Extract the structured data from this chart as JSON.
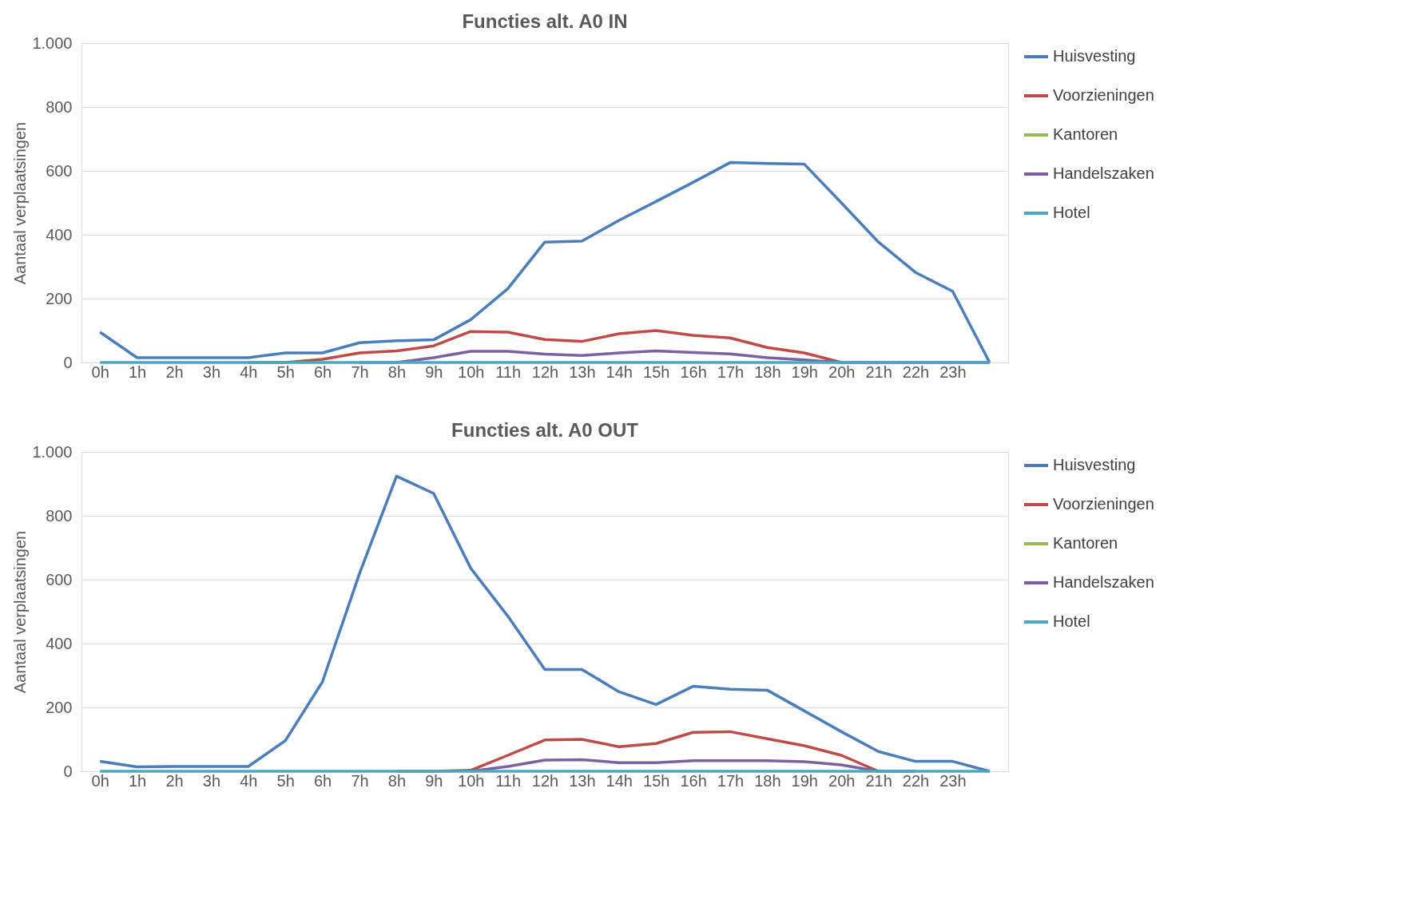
{
  "chart_data": [
    {
      "type": "line",
      "title": "Functies alt. A0 IN",
      "ylabel": "Aantaal verplaatsingen",
      "categories": [
        "0h",
        "1h",
        "2h",
        "3h",
        "4h",
        "5h",
        "6h",
        "7h",
        "8h",
        "9h",
        "10h",
        "11h",
        "12h",
        "13h",
        "14h",
        "15h",
        "16h",
        "17h",
        "18h",
        "19h",
        "20h",
        "21h",
        "22h",
        "23h",
        null
      ],
      "ylim": [
        0,
        1000
      ],
      "yticks": [
        0,
        200,
        400,
        600,
        800,
        {
          "value": 1000,
          "label": "1.000"
        }
      ],
      "grid": "y",
      "legend": "right",
      "marker": "none",
      "line_style": "solid",
      "series": [
        {
          "name": "Huisvesting",
          "color": "#4a7ebb",
          "values": [
            95,
            15,
            15,
            15,
            15,
            30,
            30,
            62,
            68,
            71,
            134,
            231,
            377,
            380,
            445,
            504,
            564,
            626,
            623,
            621,
            500,
            377,
            282,
            223,
            0
          ]
        },
        {
          "name": "Voorzieningen",
          "color": "#be4b48",
          "values": [
            null,
            null,
            null,
            null,
            0,
            0,
            10,
            30,
            36,
            52,
            97,
            95,
            72,
            66,
            90,
            100,
            85,
            77,
            47,
            30,
            0,
            0,
            null,
            null,
            null
          ]
        },
        {
          "name": "Kantoren",
          "color": "#98b954",
          "values": [
            null,
            null,
            null,
            null,
            null,
            null,
            null,
            null,
            null,
            null,
            null,
            null,
            null,
            null,
            null,
            null,
            null,
            null,
            null,
            null,
            null,
            null,
            null,
            null,
            null
          ]
        },
        {
          "name": "Handelszaken",
          "color": "#7d60a0",
          "values": [
            null,
            null,
            null,
            null,
            null,
            null,
            null,
            0,
            0,
            15,
            35,
            35,
            26,
            22,
            30,
            36,
            31,
            27,
            15,
            8,
            0,
            0,
            0,
            0,
            0
          ]
        },
        {
          "name": "Hotel",
          "color": "#46aac5",
          "values": [
            0,
            0,
            0,
            0,
            0,
            0,
            0,
            0,
            0,
            0,
            0,
            0,
            0,
            0,
            0,
            0,
            0,
            0,
            0,
            0,
            0,
            0,
            0,
            0,
            0
          ]
        }
      ]
    },
    {
      "type": "line",
      "title": "Functies alt. A0 OUT",
      "ylabel": "Aantaal verplaatsingen",
      "categories": [
        "0h",
        "1h",
        "2h",
        "3h",
        "4h",
        "5h",
        "6h",
        "7h",
        "8h",
        "9h",
        "10h",
        "11h",
        "12h",
        "13h",
        "14h",
        "15h",
        "16h",
        "17h",
        "18h",
        "19h",
        "20h",
        "21h",
        "22h",
        "23h",
        null
      ],
      "ylim": [
        0,
        1000
      ],
      "yticks": [
        0,
        200,
        400,
        600,
        800,
        {
          "value": 1000,
          "label": "1.000"
        }
      ],
      "grid": "y",
      "legend": "right",
      "marker": "none",
      "line_style": "solid",
      "series": [
        {
          "name": "Huisvesting",
          "color": "#4a7ebb",
          "values": [
            31,
            14,
            15,
            15,
            15,
            96,
            280,
            619,
            924,
            870,
            636,
            486,
            319,
            319,
            249,
            209,
            266,
            257,
            254,
            189,
            124,
            62,
            31,
            31,
            0
          ]
        },
        {
          "name": "Voorzieningen",
          "color": "#be4b48",
          "values": [
            null,
            null,
            null,
            null,
            null,
            null,
            null,
            null,
            0,
            0,
            3,
            50,
            98,
            100,
            77,
            87,
            122,
            124,
            102,
            80,
            50,
            0,
            0,
            null,
            null
          ]
        },
        {
          "name": "Kantoren",
          "color": "#98b954",
          "values": [
            null,
            null,
            null,
            null,
            null,
            null,
            null,
            null,
            null,
            null,
            null,
            null,
            null,
            null,
            null,
            null,
            null,
            null,
            null,
            null,
            null,
            null,
            null,
            null,
            null
          ]
        },
        {
          "name": "Handelszaken",
          "color": "#7d60a0",
          "values": [
            null,
            null,
            null,
            null,
            null,
            null,
            null,
            null,
            null,
            null,
            0,
            15,
            35,
            36,
            27,
            27,
            33,
            33,
            33,
            30,
            20,
            0,
            0,
            null,
            null
          ]
        },
        {
          "name": "Hotel",
          "color": "#46aac5",
          "values": [
            0,
            0,
            0,
            0,
            0,
            0,
            0,
            0,
            0,
            0,
            0,
            0,
            0,
            0,
            0,
            0,
            0,
            0,
            0,
            0,
            0,
            0,
            0,
            0,
            0
          ]
        }
      ]
    }
  ]
}
